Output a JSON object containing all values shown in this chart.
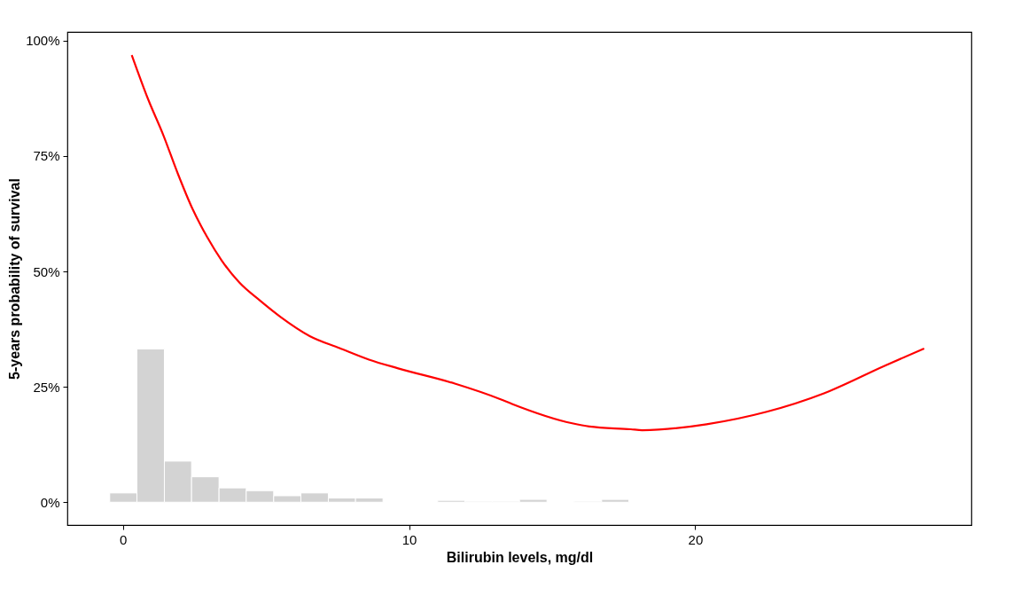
{
  "chart_data": {
    "type": "line",
    "xlabel": "Bilirubin levels, mg/dl",
    "ylabel": "5-years probability of survival",
    "xlim": [
      -1.94,
      29.65
    ],
    "xticks": [
      0,
      10,
      20
    ],
    "ylim": [
      -4.95,
      101.9
    ],
    "yticks": [
      {
        "value": 0,
        "label": "0%"
      },
      {
        "value": 25,
        "label": "25%"
      },
      {
        "value": 50,
        "label": "50%"
      },
      {
        "value": 75,
        "label": "75%"
      },
      {
        "value": 100,
        "label": "100%"
      }
    ],
    "grid": false,
    "series": [
      {
        "type": "histogram",
        "color": "#d3d3d3",
        "bins": [
          -0.46,
          0.49,
          1.45,
          2.4,
          3.36,
          4.31,
          5.27,
          6.22,
          7.18,
          8.13,
          9.09,
          10.04,
          11.0,
          11.95,
          12.91,
          13.86,
          14.82,
          15.77,
          16.73,
          17.68
        ],
        "values": [
          2.0,
          33.2,
          8.9,
          5.5,
          3.1,
          2.5,
          1.4,
          2.0,
          0.9,
          0.9,
          null,
          null,
          0.4,
          0.2,
          0.2,
          0.6,
          null,
          0.2,
          0.6
        ]
      },
      {
        "color": "#ff0000",
        "x": [
          0.31,
          0.89,
          1.41,
          1.92,
          2.43,
          2.95,
          3.45,
          4.07,
          4.81,
          5.52,
          6.53,
          7.57,
          8.6,
          9.62,
          11.6,
          13.2,
          13.6,
          15.7,
          16.3,
          17.75,
          18.15,
          20.4,
          22.5,
          24.5,
          26.6,
          28.0
        ],
        "values": [
          96.9,
          87.2,
          79.6,
          71.2,
          63.6,
          57.4,
          52.4,
          47.6,
          43.6,
          40.1,
          36.0,
          33.4,
          30.9,
          29.0,
          25.7,
          22.3,
          21.3,
          17.1,
          16.4,
          15.8,
          15.6,
          16.9,
          19.6,
          23.6,
          29.5,
          33.3
        ]
      }
    ]
  }
}
